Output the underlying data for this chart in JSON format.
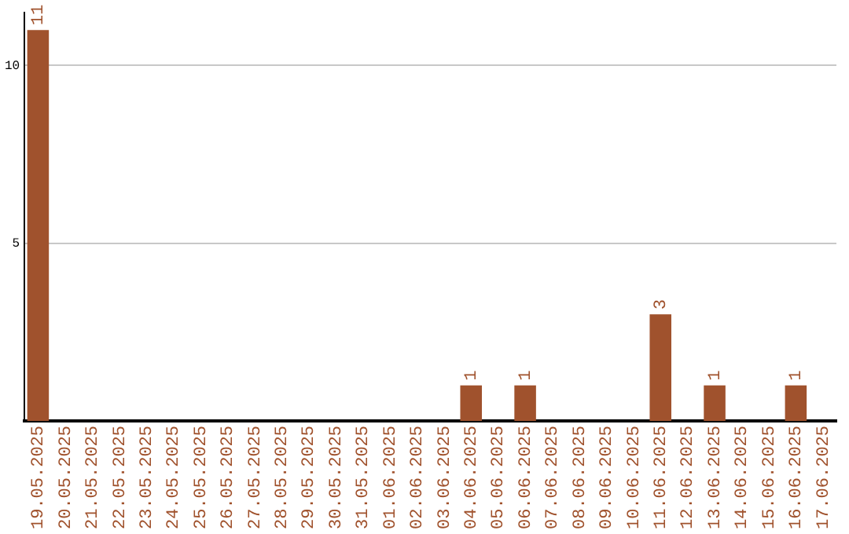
{
  "chart_data": {
    "type": "bar",
    "categories": [
      "19.05.2025",
      "20.05.2025",
      "21.05.2025",
      "22.05.2025",
      "23.05.2025",
      "24.05.2025",
      "25.05.2025",
      "26.05.2025",
      "27.05.2025",
      "28.05.2025",
      "29.05.2025",
      "30.05.2025",
      "31.05.2025",
      "01.06.2025",
      "02.06.2025",
      "03.06.2025",
      "04.06.2025",
      "05.06.2025",
      "06.06.2025",
      "07.06.2025",
      "08.06.2025",
      "09.06.2025",
      "10.06.2025",
      "11.06.2025",
      "12.06.2025",
      "13.06.2025",
      "14.06.2025",
      "15.06.2025",
      "16.06.2025",
      "17.06.2025"
    ],
    "values": [
      11,
      0,
      0,
      0,
      0,
      0,
      0,
      0,
      0,
      0,
      0,
      0,
      0,
      0,
      0,
      0,
      1,
      0,
      1,
      0,
      0,
      0,
      0,
      3,
      0,
      1,
      0,
      0,
      1,
      0
    ],
    "value_labels": [
      "11",
      null,
      null,
      null,
      null,
      null,
      null,
      null,
      null,
      null,
      null,
      null,
      null,
      null,
      null,
      null,
      "1",
      null,
      "1",
      null,
      null,
      null,
      null,
      "3",
      null,
      "1",
      null,
      null,
      "1",
      null
    ],
    "color": "#a0522d",
    "ylim": [
      0,
      11.5
    ],
    "yticks": [
      5,
      10
    ],
    "grid": "y",
    "legend": false
  }
}
